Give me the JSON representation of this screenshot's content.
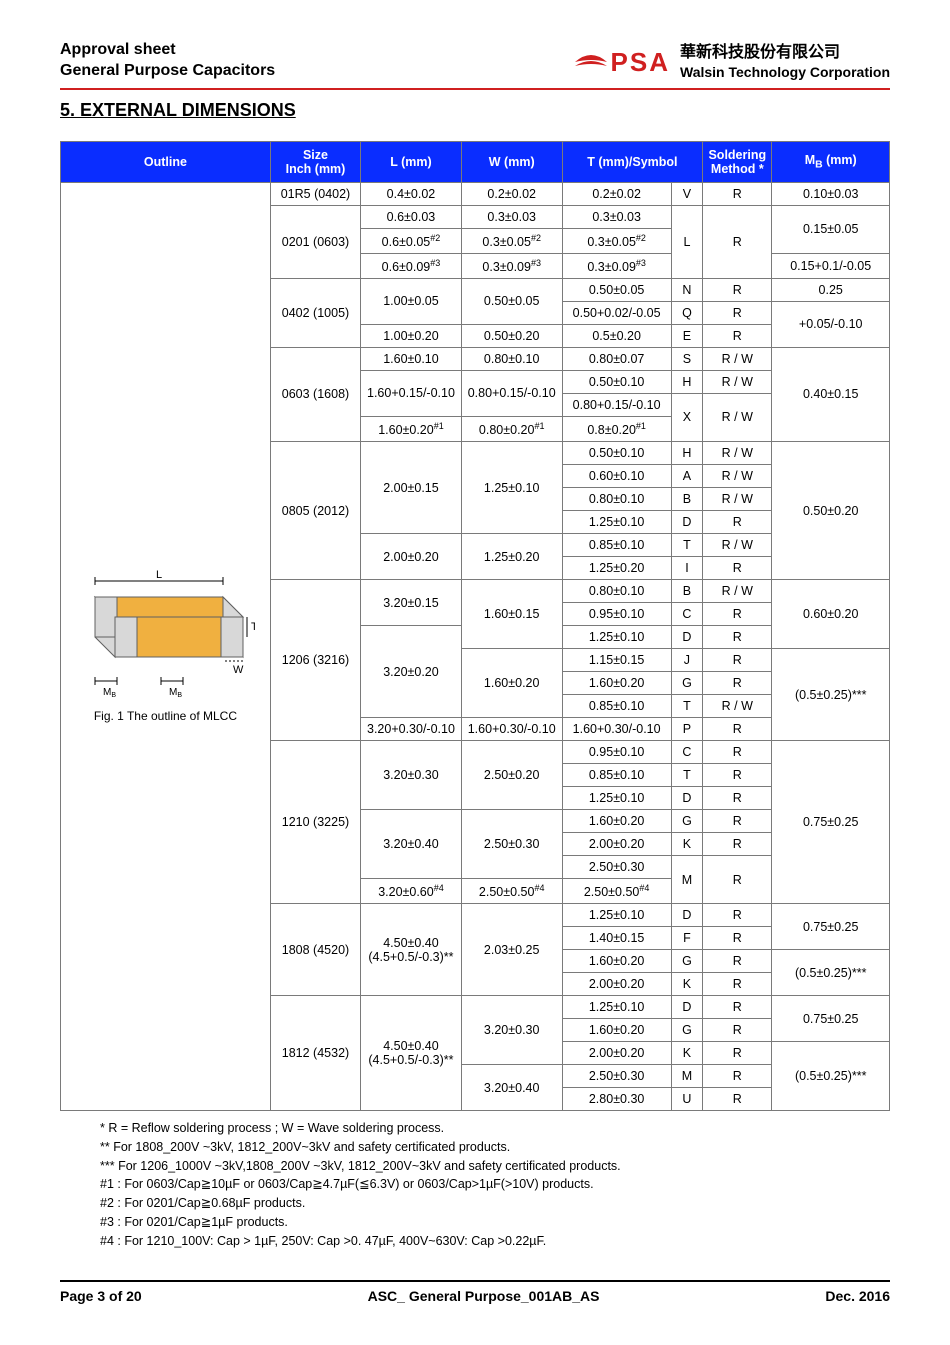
{
  "header": {
    "line1": "Approval sheet",
    "line2": "General Purpose Capacitors",
    "logo_text": "PSA",
    "company_cn": "華新科技股份有限公司",
    "company_en": "Walsin Technology Corporation"
  },
  "section_title": "5. EXTERNAL DIMENSIONS",
  "columns": {
    "outline": "Outline",
    "size": "Size\nInch (mm)",
    "l": "L (mm)",
    "w": "W (mm)",
    "t": "T (mm)/Symbol",
    "symbol": "",
    "soldering": "Soldering Method *",
    "mb": "M",
    "mb_sub": "B",
    "mb_tail": " (mm)"
  },
  "outline_caption": "Fig. 1 The outline of MLCC",
  "mlcc_labels": {
    "L": "L",
    "T": "T",
    "W": "W",
    "MB": "M",
    "MB_sub": "B"
  },
  "colors": {
    "header_bg": "#0a2dff",
    "header_fg": "#ffffff",
    "border": "#7a7a7a",
    "red": "#d02020",
    "mlcc_body": "#f0b040",
    "mlcc_term": "#d8d8d8",
    "mlcc_edge": "#606060"
  },
  "rows": [
    {
      "size": "01R5 (0402)",
      "l": "0.4±0.02",
      "w": "0.2±0.02",
      "t": "0.2±0.02",
      "sym": "V",
      "sold": "R",
      "mb": "0.10±0.03"
    },
    {
      "size": "0201 (0603)",
      "size_rs": 3,
      "l": "0.6±0.03",
      "w": "0.3±0.03",
      "t": "0.3±0.03",
      "sym": "L",
      "sym_rs": 3,
      "sold": "R",
      "sold_rs": 3,
      "mb": "0.15±0.05",
      "mb_rs": 2
    },
    {
      "l": "0.6±0.05",
      "l_sup": "#2",
      "w": "0.3±0.05",
      "w_sup": "#2",
      "t": "0.3±0.05",
      "t_sup": "#2"
    },
    {
      "l": "0.6±0.09",
      "l_sup": "#3",
      "w": "0.3±0.09",
      "w_sup": "#3",
      "t": "0.3±0.09",
      "t_sup": "#3",
      "mb": "0.15+0.1/-0.05"
    },
    {
      "size": "0402 (1005)",
      "size_rs": 3,
      "l": "1.00±0.05",
      "l_rs": 2,
      "w": "0.50±0.05",
      "w_rs": 2,
      "t": "0.50±0.05",
      "sym": "N",
      "sold": "R",
      "mb": "0.25"
    },
    {
      "t": "0.50+0.02/-0.05",
      "sym": "Q",
      "sold": "R",
      "mb": "+0.05/-0.10",
      "mb_rs": 2
    },
    {
      "l": "1.00±0.20",
      "w": "0.50±0.20",
      "t": "0.5±0.20",
      "sym": "E",
      "sold": "R"
    },
    {
      "size": "0603 (1608)",
      "size_rs": 4,
      "l": "1.60±0.10",
      "w": "0.80±0.10",
      "t": "0.80±0.07",
      "sym": "S",
      "sold": "R / W",
      "mb": "0.40±0.15",
      "mb_rs": 4
    },
    {
      "l": "1.60+0.15/-0.10",
      "l_rs": 2,
      "w": "0.80+0.15/-0.10",
      "w_rs": 2,
      "t": "0.50±0.10",
      "sym": "H",
      "sold": "R / W"
    },
    {
      "t": "0.80+0.15/-0.10",
      "sym": "X",
      "sym_rs": 2,
      "sold": "R / W",
      "sold_rs": 2
    },
    {
      "l": "1.60±0.20",
      "l_sup": "#1",
      "w": "0.80±0.20",
      "w_sup": "#1",
      "t": "0.8±0.20",
      "t_sup": "#1"
    },
    {
      "size": "0805 (2012)",
      "size_rs": 6,
      "l": "2.00±0.15",
      "l_rs": 4,
      "w": "1.25±0.10",
      "w_rs": 4,
      "t": "0.50±0.10",
      "sym": "H",
      "sold": "R / W",
      "mb": "0.50±0.20",
      "mb_rs": 6
    },
    {
      "t": "0.60±0.10",
      "sym": "A",
      "sold": "R / W"
    },
    {
      "t": "0.80±0.10",
      "sym": "B",
      "sold": "R / W"
    },
    {
      "t": "1.25±0.10",
      "sym": "D",
      "sold": "R"
    },
    {
      "l": "2.00±0.20",
      "l_rs": 2,
      "w": "1.25±0.20",
      "w_rs": 2,
      "t": "0.85±0.10",
      "sym": "T",
      "sold": "R / W"
    },
    {
      "t": "1.25±0.20",
      "sym": "I",
      "sold": "R"
    },
    {
      "size": "1206 (3216)",
      "size_rs": 7,
      "l": "3.20±0.15",
      "l_rs": 2,
      "w": "1.60±0.15",
      "w_rs": 3,
      "t": "0.80±0.10",
      "sym": "B",
      "sold": "R / W",
      "mb": "0.60±0.20",
      "mb_rs": 3
    },
    {
      "t": "0.95±0.10",
      "sym": "C",
      "sold": "R"
    },
    {
      "l": "3.20±0.20",
      "l_rs": 4,
      "t": "1.25±0.10",
      "sym": "D",
      "sold": "R"
    },
    {
      "w": "1.60±0.20",
      "w_rs": 3,
      "t": "1.15±0.15",
      "sym": "J",
      "sold": "R",
      "mb": "(0.5±0.25)***",
      "mb_rs": 4
    },
    {
      "t": "1.60±0.20",
      "sym": "G",
      "sold": "R"
    },
    {
      "t": "0.85±0.10",
      "sym": "T",
      "sold": "R / W"
    },
    {
      "l": "3.20+0.30/-0.10",
      "w": "1.60+0.30/-0.10",
      "t": "1.60+0.30/-0.10",
      "sym": "P",
      "sold": "R"
    },
    {
      "size": "1210 (3225)",
      "size_rs": 7,
      "l": "3.20±0.30",
      "l_rs": 3,
      "w": "2.50±0.20",
      "w_rs": 3,
      "t": "0.95±0.10",
      "sym": "C",
      "sold": "R",
      "mb": "0.75±0.25",
      "mb_rs": 7
    },
    {
      "t": "0.85±0.10",
      "sym": "T",
      "sold": "R"
    },
    {
      "t": "1.25±0.10",
      "sym": "D",
      "sold": "R"
    },
    {
      "l": "3.20±0.40",
      "l_rs": 3,
      "w": "2.50±0.30",
      "w_rs": 3,
      "t": "1.60±0.20",
      "sym": "G",
      "sold": "R"
    },
    {
      "t": "2.00±0.20",
      "sym": "K",
      "sold": "R"
    },
    {
      "t": "2.50±0.30",
      "sym": "M",
      "sym_rs": 2,
      "sold": "R",
      "sold_rs": 2
    },
    {
      "l": "3.20±0.60",
      "l_sup": "#4",
      "w": "2.50±0.50",
      "w_sup": "#4",
      "t": "2.50±0.50",
      "t_sup": "#4"
    },
    {
      "size": "1808 (4520)",
      "size_rs": 4,
      "l": "4.50±0.40",
      "l2": "(4.5+0.5/-0.3)**",
      "l_rs": 4,
      "w": "2.03±0.25",
      "w_rs": 4,
      "t": "1.25±0.10",
      "sym": "D",
      "sold": "R",
      "mb": "0.75±0.25",
      "mb_rs": 2
    },
    {
      "t": "1.40±0.15",
      "sym": "F",
      "sold": "R"
    },
    {
      "t": "1.60±0.20",
      "sym": "G",
      "sold": "R",
      "mb": "(0.5±0.25)***",
      "mb_rs": 2
    },
    {
      "t": "2.00±0.20",
      "sym": "K",
      "sold": "R"
    },
    {
      "size": "1812 (4532)",
      "size_rs": 5,
      "l": "4.50±0.40",
      "l2": "(4.5+0.5/-0.3)**",
      "l_rs": 5,
      "w": "3.20±0.30",
      "w_rs": 3,
      "t": "1.25±0.10",
      "sym": "D",
      "sold": "R",
      "mb": "0.75±0.25",
      "mb_rs": 2
    },
    {
      "t": "1.60±0.20",
      "sym": "G",
      "sold": "R"
    },
    {
      "t": "2.00±0.20",
      "sym": "K",
      "sold": "R",
      "mb": "(0.5±0.25)***",
      "mb_rs": 3
    },
    {
      "w": "3.20±0.40",
      "w_rs": 2,
      "t": "2.50±0.30",
      "sym": "M",
      "sold": "R"
    },
    {
      "t": "2.80±0.30",
      "sym": "U",
      "sold": "R"
    }
  ],
  "notes": [
    "* R = Reflow soldering process ; W = Wave soldering process.",
    "** For 1808_200V ~3kV, 1812_200V~3kV and safety certificated products.",
    "*** For 1206_1000V ~3kV,1808_200V ~3kV, 1812_200V~3kV and safety certificated products.",
    "#1 : For 0603/Cap≧10µF or 0603/Cap≧4.7µF(≦6.3V) or 0603/Cap>1µF(>10V) products.",
    "#2 : For 0201/Cap≧0.68µF products.",
    "#3 : For 0201/Cap≧1µF products.",
    "#4 : For 1210_100V: Cap > 1µF, 250V: Cap >0. 47µF, 400V~630V: Cap >0.22µF."
  ],
  "footer": {
    "left": "Page 3 of 20",
    "center": "ASC_ General Purpose_001AB_AS",
    "right": "Dec. 2016"
  }
}
